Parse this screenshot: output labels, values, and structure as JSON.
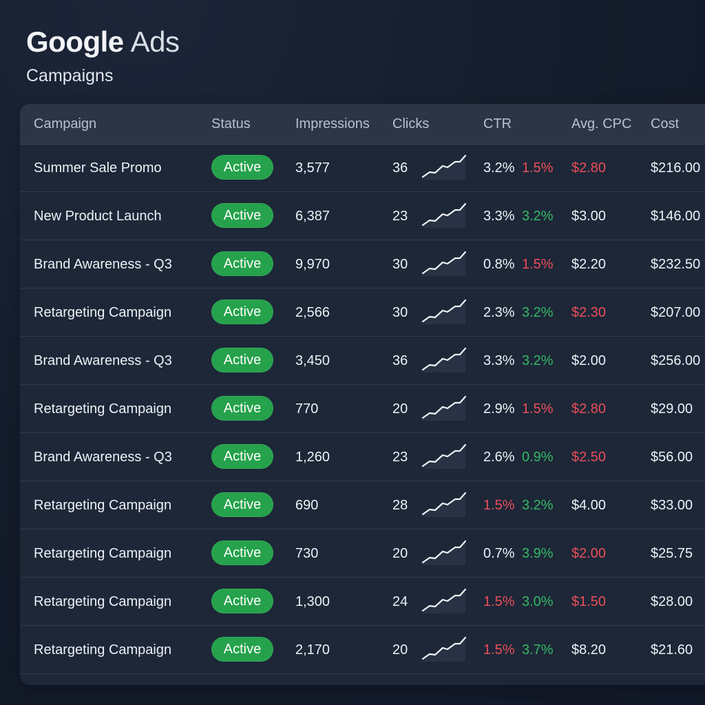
{
  "header": {
    "brand_google": "Google",
    "brand_ads": "Ads",
    "page_title": "Campaigns"
  },
  "table": {
    "columns": [
      "Campaign",
      "Status",
      "Impressions",
      "Clicks",
      "CTR",
      "Avg. CPC",
      "Cost"
    ],
    "status_color": "#25a24b",
    "rows": [
      {
        "campaign": "Summer Sale Promo",
        "status": "Active",
        "impressions": "3,577",
        "clicks": "36",
        "ctr": "3.2%",
        "ctr_change": "1.5%",
        "ctr_color": "white",
        "ctr_change_color": "red",
        "avg_cpc": "$2.80",
        "cpc_color": "red",
        "cost": "$216.00"
      },
      {
        "campaign": "New Product Launch",
        "status": "Active",
        "impressions": "6,387",
        "clicks": "23",
        "ctr": "3.3%",
        "ctr_change": "3.2%",
        "ctr_color": "white",
        "ctr_change_color": "green",
        "avg_cpc": "$3.00",
        "cpc_color": "white",
        "cost": "$146.00"
      },
      {
        "campaign": "Brand Awareness - Q3",
        "status": "Active",
        "impressions": "9,970",
        "clicks": "30",
        "ctr": "0.8%",
        "ctr_change": "1.5%",
        "ctr_color": "white",
        "ctr_change_color": "red",
        "avg_cpc": "$2.20",
        "cpc_color": "white",
        "cost": "$232.50"
      },
      {
        "campaign": "Retargeting Campaign",
        "status": "Active",
        "impressions": "2,566",
        "clicks": "30",
        "ctr": "2.3%",
        "ctr_change": "3.2%",
        "ctr_color": "white",
        "ctr_change_color": "green",
        "avg_cpc": "$2.30",
        "cpc_color": "red",
        "cost": "$207.00"
      },
      {
        "campaign": "Brand Awareness - Q3",
        "status": "Active",
        "impressions": "3,450",
        "clicks": "36",
        "ctr": "3.3%",
        "ctr_change": "3.2%",
        "ctr_color": "white",
        "ctr_change_color": "green",
        "avg_cpc": "$2.00",
        "cpc_color": "white",
        "cost": "$256.00"
      },
      {
        "campaign": "Retargeting Campaign",
        "status": "Active",
        "impressions": "770",
        "clicks": "20",
        "ctr": "2.9%",
        "ctr_change": "1.5%",
        "ctr_color": "white",
        "ctr_change_color": "red",
        "avg_cpc": "$2.80",
        "cpc_color": "red",
        "cost": "$29.00"
      },
      {
        "campaign": "Brand Awareness - Q3",
        "status": "Active",
        "impressions": "1,260",
        "clicks": "23",
        "ctr": "2.6%",
        "ctr_change": "0.9%",
        "ctr_color": "white",
        "ctr_change_color": "green",
        "avg_cpc": "$2.50",
        "cpc_color": "red",
        "cost": "$56.00"
      },
      {
        "campaign": "Retargeting Campaign",
        "status": "Active",
        "impressions": "690",
        "clicks": "28",
        "ctr": "1.5%",
        "ctr_change": "3.2%",
        "ctr_color": "red",
        "ctr_change_color": "green",
        "avg_cpc": "$4.00",
        "cpc_color": "white",
        "cost": "$33.00"
      },
      {
        "campaign": "Retargeting Campaign",
        "status": "Active",
        "impressions": "730",
        "clicks": "20",
        "ctr": "0.7%",
        "ctr_change": "3.9%",
        "ctr_color": "white",
        "ctr_change_color": "green",
        "avg_cpc": "$2.00",
        "cpc_color": "red",
        "cost": "$25.75"
      },
      {
        "campaign": "Retargeting Campaign",
        "status": "Active",
        "impressions": "1,300",
        "clicks": "24",
        "ctr": "1.5%",
        "ctr_change": "3.0%",
        "ctr_color": "red",
        "ctr_change_color": "green",
        "avg_cpc": "$1.50",
        "cpc_color": "red",
        "cost": "$28.00"
      },
      {
        "campaign": "Retargeting Campaign",
        "status": "Active",
        "impressions": "2,170",
        "clicks": "20",
        "ctr": "1.5%",
        "ctr_change": "3.7%",
        "ctr_color": "red",
        "ctr_change_color": "green",
        "avg_cpc": "$8.20",
        "cpc_color": "white",
        "cost": "$21.60"
      }
    ]
  },
  "icons": {
    "trend": "trend-line-icon"
  }
}
